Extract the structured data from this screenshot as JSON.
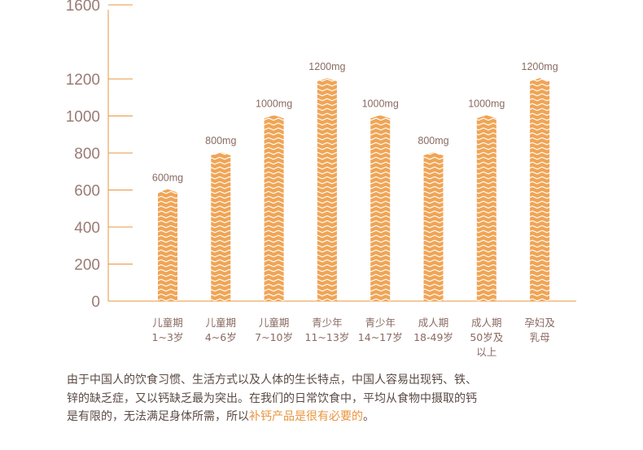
{
  "chart_data": {
    "type": "bar",
    "categories": [
      [
        "儿童期",
        "1~3岁"
      ],
      [
        "儿童期",
        "4~6岁"
      ],
      [
        "儿童期",
        "7~10岁"
      ],
      [
        "青少年",
        "11~13岁"
      ],
      [
        "青少年",
        "14~17岁"
      ],
      [
        "成人期",
        "18-49岁"
      ],
      [
        "成人期",
        "50岁及",
        "以上"
      ],
      [
        "孕妇及",
        "乳母"
      ]
    ],
    "values": [
      600,
      800,
      1000,
      1200,
      1000,
      800,
      1000,
      1200
    ],
    "data_labels": [
      "600mg",
      "800mg",
      "1000mg",
      "1200mg",
      "1000mg",
      "800mg",
      "1000mg",
      "1200mg"
    ],
    "yticks": [
      "0",
      "200",
      "400",
      "600",
      "800",
      "1000",
      "1200",
      "1600"
    ],
    "ytick_values": [
      0,
      200,
      400,
      600,
      800,
      1000,
      1200,
      1600
    ],
    "ylim": [
      0,
      1600
    ],
    "title": "",
    "xlabel": "",
    "ylabel": "",
    "colors": {
      "bar": "#f0a556",
      "bar_stripe": "#ffffff",
      "axis": "#e8953e",
      "text": "#9a7b73"
    }
  },
  "caption": {
    "line1": "由于中国人的饮食习惯、生活方式以及人体的生长特点，中国人容易出现钙、铁、",
    "line2": "锌的缺乏症，又以钙缺乏最为突出。在我们的日常饮食中，平均从食物中摄取的钙",
    "line3_prefix": "是有限的，无法满足身体所需，所以",
    "line3_highlight": "补钙产品是很有必要的",
    "line3_suffix": "。"
  }
}
